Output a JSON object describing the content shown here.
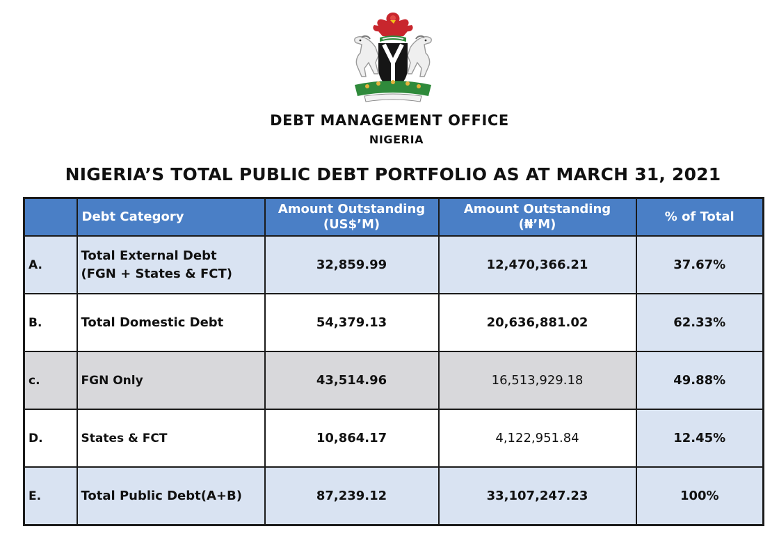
{
  "header": {
    "office_name": "DEBT MANAGEMENT OFFICE",
    "country": "NIGERIA",
    "title": "NIGERIA’S TOTAL PUBLIC DEBT PORTFOLIO AS AT MARCH 31, 2021"
  },
  "colors": {
    "header_bg": "#4a7fc6",
    "row_blue": "#d9e3f2",
    "row_grey": "#d8d8db",
    "eagle_red": "#c8262d",
    "shield_black": "#151515",
    "wreath_green": "#2f8a3b"
  },
  "table": {
    "columns": {
      "category": "Debt Category",
      "usd_line1": "Amount Outstanding",
      "usd_line2": "(US$’M)",
      "ngn_line1": "Amount Outstanding",
      "ngn_line2": "(₦’M)",
      "pct": "% of Total"
    },
    "rows": [
      {
        "letter": "A.",
        "category_line1": "Total External Debt",
        "category_line2": "(FGN + States & FCT)",
        "usd": "32,859.99",
        "ngn": "12,470,366.21",
        "pct": "37.67%"
      },
      {
        "letter": "B.",
        "category_line1": "Total Domestic Debt",
        "category_line2": "",
        "usd": "54,379.13",
        "ngn": "20,636,881.02",
        "pct": "62.33%"
      },
      {
        "letter": "c.",
        "category_line1": "FGN Only",
        "category_line2": "",
        "usd": "43,514.96",
        "ngn": "16,513,929.18",
        "pct": "49.88%"
      },
      {
        "letter": "D.",
        "category_line1": "States & FCT",
        "category_line2": "",
        "usd": "10,864.17",
        "ngn": "4,122,951.84",
        "pct": "12.45%"
      },
      {
        "letter": "E.",
        "category_line1": "Total Public Debt(A+B)",
        "category_line2": "",
        "usd": "87,239.12",
        "ngn": "33,107,247.23",
        "pct": "100%"
      }
    ]
  }
}
